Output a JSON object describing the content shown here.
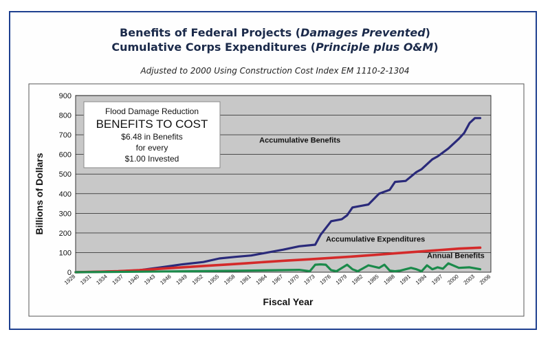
{
  "title_line1": {
    "a": "Benefits of Federal Projects (",
    "b": "Damages Prevented",
    "c": ")"
  },
  "title_line2": {
    "a": "Cumulative Corps Expenditures (",
    "b": "Principle plus O&M",
    "c": ")"
  },
  "subtitle": "Adjusted to 2000 Using Construction Cost Index EM 1110-2-1304",
  "callout": {
    "line1": "Flood Damage Reduction",
    "line2": "BENEFITS TO COST",
    "line3": "$6.48 in Benefits",
    "line4": "for every",
    "line5": "$1.00 Invested"
  },
  "colors": {
    "benefits": "#2a2a7a",
    "expenditures": "#d42a2a",
    "annual": "#1a8a4a",
    "plot_bg": "#c8c8c8",
    "frame": "#1d3f8f"
  },
  "chart_data": {
    "type": "line",
    "xlabel": "Fiscal Year",
    "ylabel": "Billions of Dollars",
    "xlim": [
      1928,
      2006
    ],
    "ylim": [
      0,
      900
    ],
    "xticks": [
      "1928",
      "1931",
      "1934",
      "1937",
      "1940",
      "1943",
      "1946",
      "1949",
      "1952",
      "1955",
      "1958",
      "1961",
      "1964",
      "1967",
      "1970",
      "1973",
      "1976",
      "1979",
      "1982",
      "1985",
      "1988",
      "1991",
      "1994",
      "1997",
      "2000",
      "2003",
      "2006"
    ],
    "yticks": [
      "0",
      "100",
      "200",
      "300",
      "400",
      "500",
      "600",
      "700",
      "800",
      "900"
    ],
    "grid": true,
    "series": [
      {
        "name": "Accumulative Benefits",
        "x": [
          1928,
          1932,
          1936,
          1940,
          1944,
          1948,
          1952,
          1955,
          1958,
          1961,
          1964,
          1967,
          1970,
          1973,
          1974,
          1976,
          1978,
          1979,
          1980,
          1982,
          1983,
          1985,
          1987,
          1988,
          1990,
          1992,
          1993,
          1995,
          1996,
          1998,
          2000,
          2001,
          2002,
          2003,
          2004
        ],
        "y": [
          0,
          2,
          5,
          10,
          25,
          40,
          52,
          70,
          78,
          85,
          100,
          115,
          132,
          140,
          190,
          260,
          270,
          290,
          330,
          340,
          345,
          400,
          420,
          460,
          465,
          510,
          525,
          575,
          590,
          630,
          680,
          710,
          760,
          785,
          785
        ]
      },
      {
        "name": "Accumulative Expenditures",
        "x": [
          1928,
          1932,
          1936,
          1940,
          1944,
          1948,
          1952,
          1956,
          1960,
          1964,
          1968,
          1972,
          1976,
          1980,
          1984,
          1988,
          1992,
          1996,
          2000,
          2004
        ],
        "y": [
          0,
          2,
          5,
          10,
          18,
          25,
          32,
          38,
          45,
          53,
          60,
          66,
          73,
          80,
          88,
          96,
          104,
          112,
          120,
          125
        ]
      },
      {
        "name": "Annual Benefits",
        "x": [
          1928,
          1950,
          1960,
          1970,
          1972,
          1973,
          1974,
          1975,
          1976,
          1977,
          1979,
          1980,
          1981,
          1983,
          1985,
          1986,
          1987,
          1988,
          1989,
          1991,
          1992,
          1993,
          1994,
          1995,
          1996,
          1997,
          1998,
          2000,
          2002,
          2004
        ],
        "y": [
          0,
          5,
          8,
          12,
          5,
          38,
          40,
          38,
          10,
          5,
          38,
          15,
          5,
          35,
          22,
          38,
          8,
          5,
          8,
          22,
          15,
          5,
          35,
          15,
          25,
          18,
          45,
          22,
          25,
          15
        ]
      }
    ],
    "annotations": [
      "Accumulative Benefits",
      "Accumulative Expenditures",
      "Annual Benefits"
    ]
  }
}
